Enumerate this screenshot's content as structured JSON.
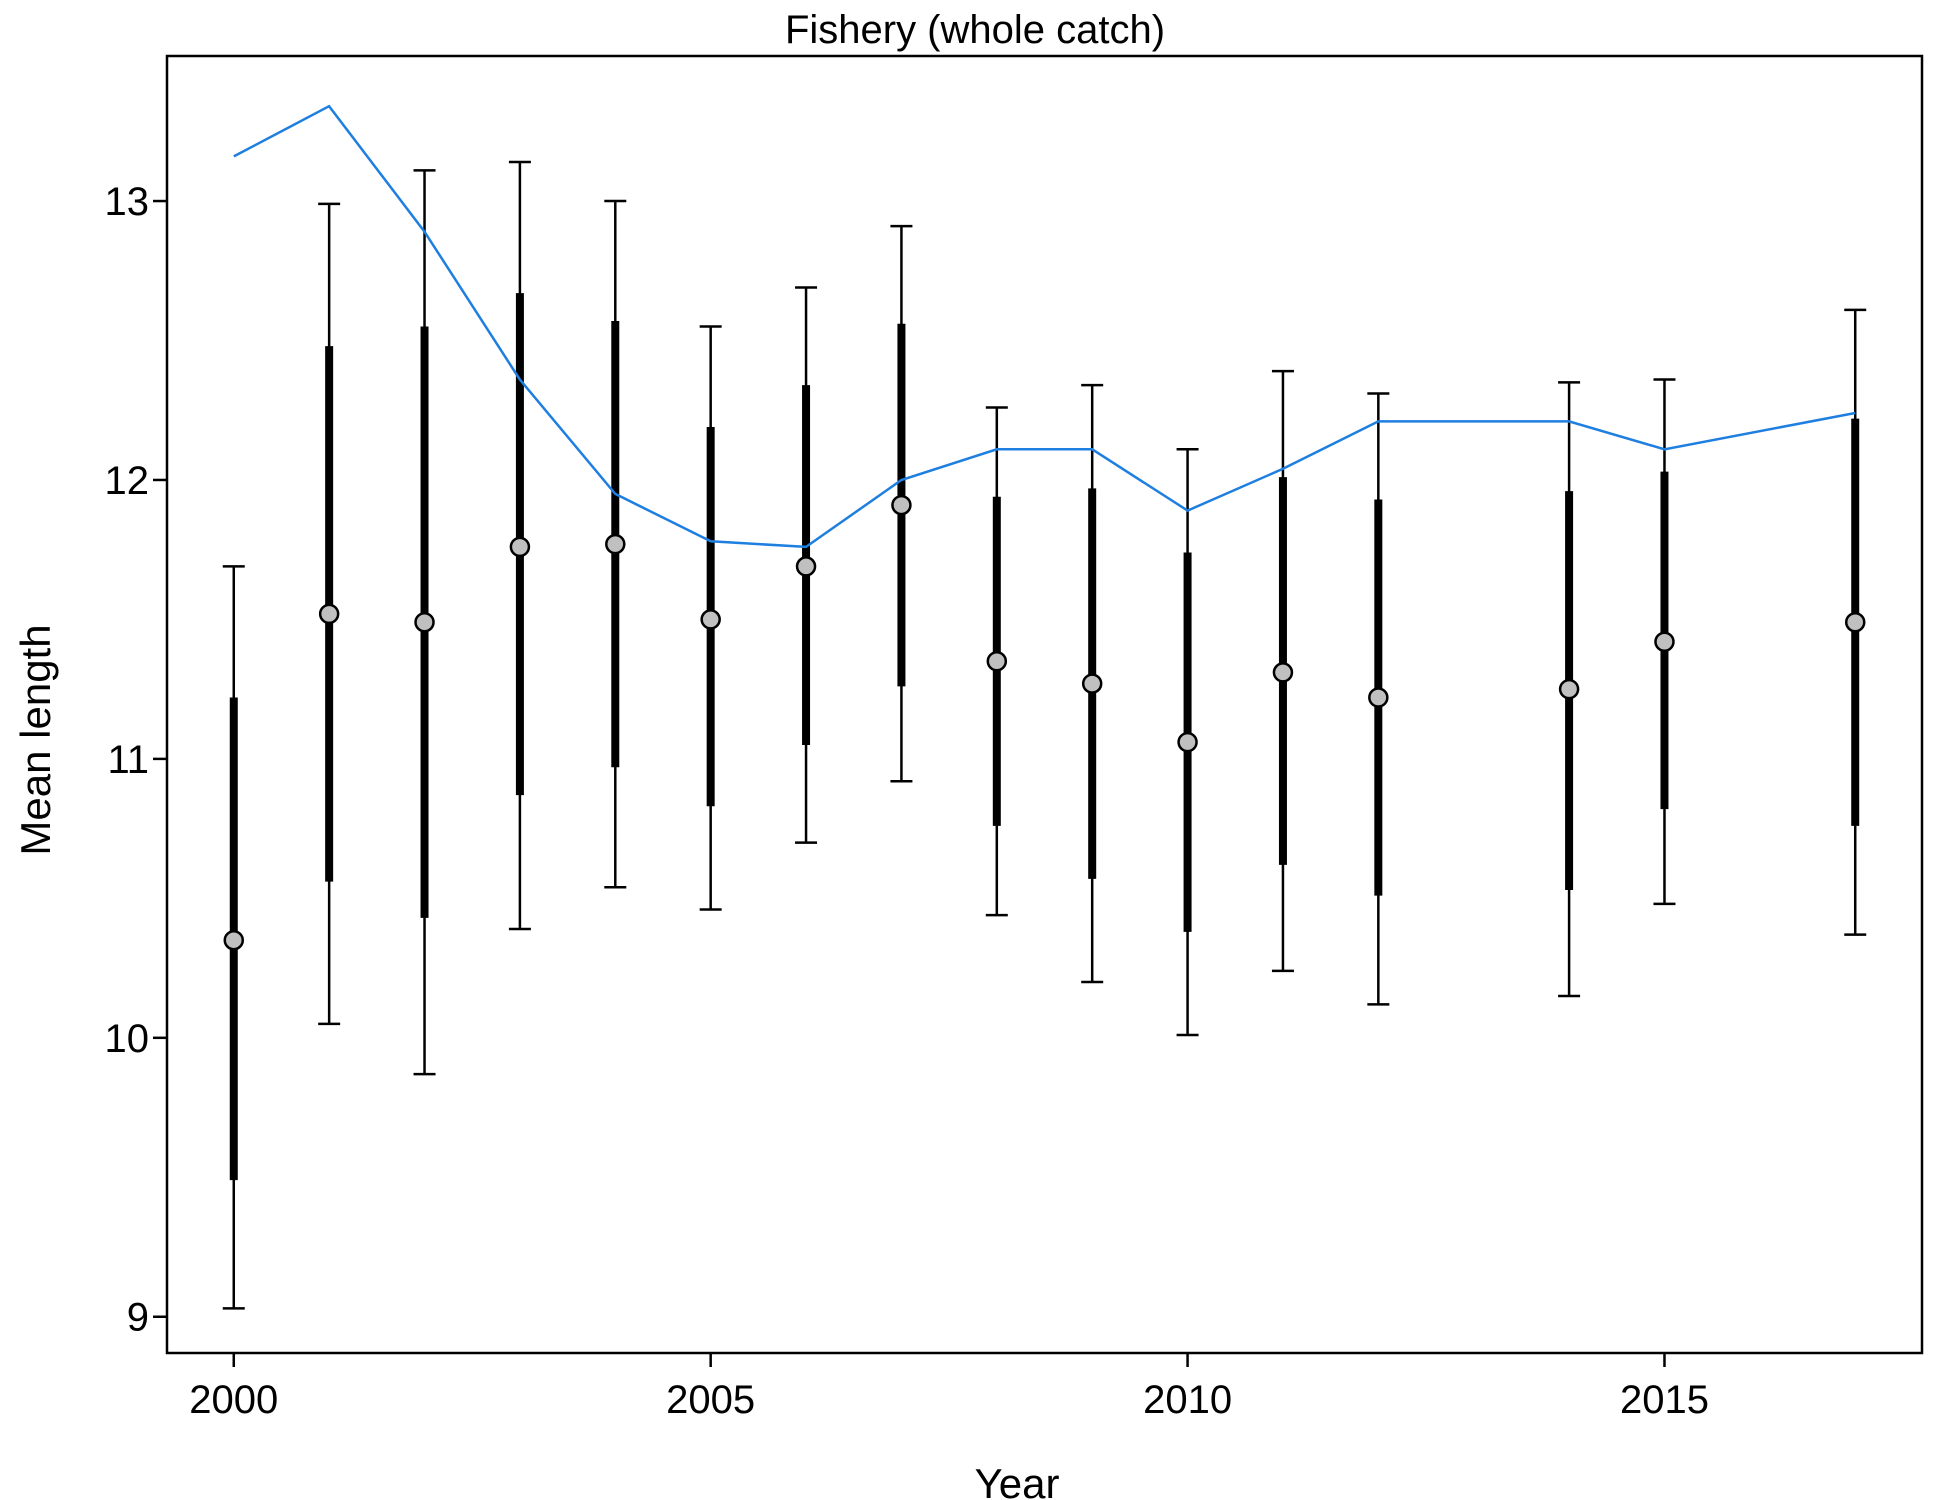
{
  "chart_data": {
    "type": "line",
    "title": "Fishery (whole catch)",
    "xlabel": "Year",
    "ylabel": "Mean length",
    "xlim": [
      1999.3,
      2017.7
    ],
    "ylim": [
      8.87,
      13.52
    ],
    "x_ticks": [
      2000,
      2005,
      2010,
      2015
    ],
    "x_tick_labels": [
      "2000",
      "2005",
      "2010",
      "2015"
    ],
    "y_ticks": [
      9,
      10,
      11,
      12,
      13
    ],
    "y_tick_labels": [
      "9",
      "10",
      "11",
      "12",
      "13"
    ],
    "grid": false,
    "legend": "none",
    "colors": {
      "predicted": "#1e7fe0",
      "observed_fill": "#c0c0c0",
      "interval": "#000000"
    },
    "series": [
      {
        "kind": "observed",
        "marker": "circle",
        "x": [
          2000,
          2001,
          2002,
          2003,
          2004,
          2005,
          2006,
          2007,
          2008,
          2009,
          2010,
          2011,
          2012,
          2014,
          2015,
          2017
        ],
        "values": [
          10.35,
          11.52,
          11.49,
          11.76,
          11.77,
          11.5,
          11.69,
          11.91,
          11.35,
          11.27,
          11.06,
          11.31,
          11.22,
          11.25,
          11.42,
          11.49
        ],
        "inner_low": [
          9.49,
          10.56,
          10.43,
          10.87,
          10.97,
          10.83,
          11.05,
          11.26,
          10.76,
          10.57,
          10.38,
          10.62,
          10.51,
          10.53,
          10.82,
          10.76
        ],
        "inner_high": [
          11.22,
          12.48,
          12.55,
          12.67,
          12.57,
          12.19,
          12.34,
          12.56,
          11.94,
          11.97,
          11.74,
          12.01,
          11.93,
          11.96,
          12.03,
          12.22
        ],
        "outer_low": [
          9.03,
          10.05,
          9.87,
          10.39,
          10.54,
          10.46,
          10.7,
          10.92,
          10.44,
          10.2,
          10.01,
          10.24,
          10.12,
          10.15,
          10.48,
          10.37
        ],
        "outer_high": [
          11.69,
          12.99,
          13.11,
          13.14,
          13.0,
          12.55,
          12.69,
          12.91,
          12.26,
          12.34,
          12.11,
          12.39,
          12.31,
          12.35,
          12.36,
          12.61
        ]
      },
      {
        "kind": "predicted",
        "x": [
          2000,
          2001,
          2002,
          2003,
          2004,
          2005,
          2006,
          2007,
          2008,
          2009,
          2010,
          2011,
          2012,
          2014,
          2015,
          2017
        ],
        "values": [
          13.16,
          13.34,
          12.89,
          12.36,
          11.95,
          11.78,
          11.76,
          12.0,
          12.11,
          12.11,
          11.89,
          12.04,
          12.21,
          12.21,
          12.11,
          12.24
        ]
      }
    ]
  }
}
